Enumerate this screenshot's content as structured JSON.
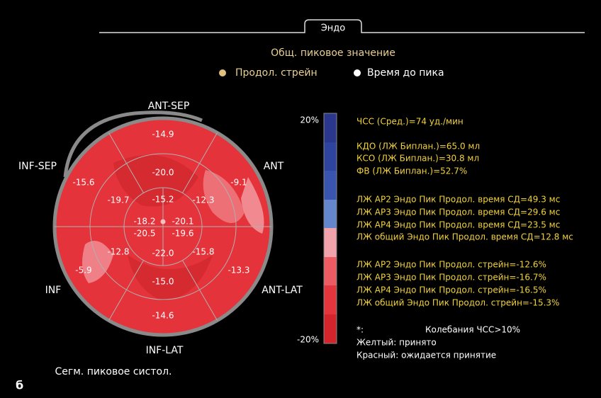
{
  "tab": "Эндо",
  "subtitle": "Общ. пиковое значение",
  "options": [
    "Продол. стрейн",
    "Время до пика"
  ],
  "bullseye": {
    "segment_labels": [
      "ANT-SEP",
      "ANT",
      "ANT-LAT",
      "INF-LAT",
      "INF",
      "INF-SEP"
    ],
    "values": [
      "-14.9",
      "-9.1",
      "-13.3",
      "-14.6",
      "-5.9",
      "-15.6",
      "-20.0",
      "-12.3",
      "-15.8",
      "-15.0",
      "-12.8",
      "-19.7",
      "-15.2",
      "-22.0",
      "-18.2",
      "-20.1",
      "-20.5",
      "-19.6"
    ],
    "caption": "Сегм. пиковое систол."
  },
  "scale": {
    "max_label": "20%",
    "min_label": "-20%"
  },
  "info": [
    "ЧСС (Сред.)=74 уд./мин",
    "КДО (ЛЖ Биплан.)=65.0 мл",
    "КСО (ЛЖ Биплан.)=30.8 мл",
    "ФВ (ЛЖ Биплан.)=52.7%",
    "ЛЖ AP2 Эндо Пик Продол. время СД=49.3 мс",
    "ЛЖ AP3 Эндо Пик Продол. время СД=29.6 мс",
    "ЛЖ AP4 Эндо Пик Продол. время СД=23.5 мс",
    "ЛЖ общий Эндо Пик Продол. время СД=12.8 мс",
    "ЛЖ AP2 Эндо Пик Продол. стрейн=-12.6%",
    "ЛЖ AP3 Эндо Пик Продол. стрейн=-16.7%",
    "ЛЖ AP4 Эндо Пик Продол. стрейн=-16.5%",
    "ЛЖ общий Эндо Пик Продол. стрейн=-15.3%"
  ],
  "note": [
    "*:",
    "Колебания ЧСС>10%",
    "Желтый: принято",
    "Красный: ожидается принятие"
  ],
  "panel_label": "б"
}
